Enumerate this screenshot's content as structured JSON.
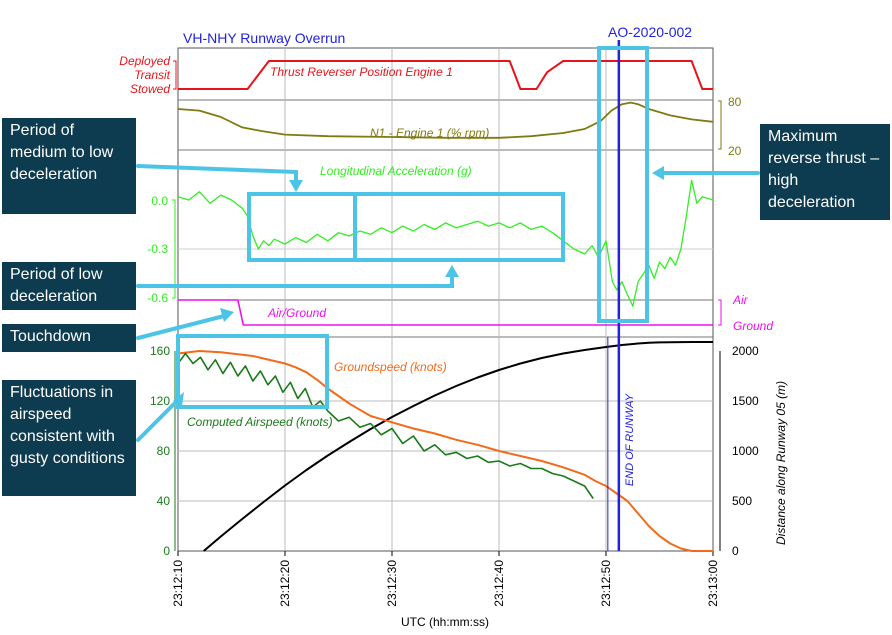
{
  "header": {
    "title": "VH-NHY Runway Overrun",
    "report_id": "AO-2020-002"
  },
  "colors": {
    "reverser": "#e8141b",
    "n1": "#807a10",
    "accel": "#33ee22",
    "airground": "#ee11ee",
    "groundspeed": "#f26b1c",
    "airspeed": "#1b7a1b",
    "distance": "#000000",
    "runway_end": "#2222dd",
    "highlight": "#4cc4e6",
    "callout_bg": "#0d3b4f"
  },
  "callouts": [
    {
      "id": "medium-low-decel",
      "text": "Period of medium to low deceleration"
    },
    {
      "id": "max-reverse",
      "text": "Maximum reverse thrust – high deceleration"
    },
    {
      "id": "low-decel",
      "text": "Period of low deceleration"
    },
    {
      "id": "touchdown",
      "text": "Touchdown"
    },
    {
      "id": "fluctuations",
      "text": "Fluctuations in airspeed consistent with gusty conditions"
    }
  ],
  "chart_data": {
    "type": "line",
    "title": "VH-NHY Runway Overrun",
    "xlabel": "UTC (hh:mm:ss)",
    "x_ticks": [
      "23:12:10",
      "23:12:20",
      "23:12:30",
      "23:12:40",
      "23:12:50",
      "23:13:00"
    ],
    "xlim": [
      0,
      50
    ],
    "grid": true,
    "marker": {
      "label": "END OF RUNWAY",
      "t": 41.2
    },
    "panels": [
      {
        "id": "reverser",
        "levels": [
          "Deployed",
          "Transit",
          "Stowed"
        ],
        "series": [
          {
            "name": "Thrust Reverser Position Engine 1",
            "t": [
              0,
              6.5,
              8.5,
              31,
              32,
              33.5,
              34.5,
              36,
              48,
              49,
              50
            ],
            "v": [
              0,
              0,
              2,
              2,
              0,
              0,
              1.2,
              2,
              2,
              0,
              0
            ]
          }
        ]
      },
      {
        "id": "n1",
        "ylim": [
          20,
          80
        ],
        "y_ticks": [
          "80",
          "20"
        ],
        "series": [
          {
            "name": "N1 - Engine 1 (% rpm)",
            "t": [
              0,
              2,
              4,
              6,
              8,
              10,
              14,
              20,
              25,
              30,
              33,
              36,
              38,
              39.5,
              40.5,
              41.5,
              42.3,
              43,
              44,
              46,
              48,
              50
            ],
            "v": [
              70,
              68,
              60,
              47,
              42,
              38,
              36,
              35,
              34,
              34,
              36,
              40,
              45,
              55,
              68,
              76,
              78,
              76,
              70,
              62,
              57,
              54
            ]
          }
        ]
      },
      {
        "id": "accel",
        "ylim": [
          -0.6,
          0.0
        ],
        "y_ticks": [
          "0.0",
          "-0.3",
          "-0.6"
        ],
        "series": [
          {
            "name": "Longitudinal Acceleration (g)",
            "t": [
              0,
              1,
              2,
              3,
              4,
              5,
              6,
              6.5,
              7,
              7.5,
              8,
              8.5,
              9,
              10,
              11,
              12,
              13,
              14,
              15,
              16,
              17,
              18,
              19,
              20,
              21,
              22,
              23,
              24,
              25,
              26,
              27,
              28,
              29,
              30,
              31,
              32,
              33,
              34,
              35,
              36,
              37,
              38,
              38.7,
              39.3,
              40,
              40.6,
              41,
              41.5,
              42,
              42.5,
              43,
              43.5,
              44,
              44.5,
              45,
              45.5,
              46,
              46.5,
              47,
              47.5,
              48,
              48.5,
              49,
              50
            ],
            "v": [
              0.02,
              0.0,
              0.05,
              -0.02,
              0.03,
              0.0,
              -0.05,
              -0.1,
              -0.22,
              -0.3,
              -0.25,
              -0.28,
              -0.24,
              -0.27,
              -0.23,
              -0.26,
              -0.21,
              -0.25,
              -0.2,
              -0.22,
              -0.19,
              -0.21,
              -0.17,
              -0.2,
              -0.16,
              -0.19,
              -0.15,
              -0.18,
              -0.14,
              -0.17,
              -0.15,
              -0.13,
              -0.16,
              -0.14,
              -0.17,
              -0.14,
              -0.18,
              -0.16,
              -0.2,
              -0.25,
              -0.3,
              -0.33,
              -0.28,
              -0.35,
              -0.25,
              -0.5,
              -0.55,
              -0.5,
              -0.58,
              -0.65,
              -0.5,
              -0.45,
              -0.4,
              -0.48,
              -0.38,
              -0.42,
              -0.35,
              -0.4,
              -0.3,
              -0.1,
              0.12,
              -0.02,
              0.02,
              0.0
            ]
          }
        ]
      },
      {
        "id": "airground",
        "levels": [
          "Air",
          "Ground"
        ],
        "series": [
          {
            "name": "Air/Ground",
            "t": [
              0,
              5.6,
              6.1,
              50
            ],
            "v": [
              1,
              1,
              0,
              0
            ]
          }
        ]
      },
      {
        "id": "speed",
        "ylim": [
          0,
          160
        ],
        "y_ticks": [
          "160",
          "120",
          "80",
          "40",
          "0"
        ],
        "y2label": "Distance along Runway 05 (m)",
        "y2lim": [
          0,
          2000
        ],
        "y2_ticks": [
          "2000",
          "1500",
          "1000",
          "500",
          "0"
        ],
        "series": [
          {
            "name": "Groundspeed (knots)",
            "axis": "left",
            "t": [
              0,
              2,
              4,
              5,
              6,
              7,
              8,
              9,
              10,
              11,
              12,
              13,
              14,
              15,
              16,
              17,
              18,
              20,
              22,
              24,
              26,
              28,
              30,
              32,
              34,
              36,
              38,
              39,
              40,
              41,
              42,
              43,
              44,
              45,
              46,
              47,
              48,
              49,
              50
            ],
            "v": [
              158,
              160,
              159,
              158,
              157,
              156,
              154,
              152,
              150,
              147,
              143,
              137,
              130,
              124,
              118,
              113,
              108,
              103,
              98,
              94,
              89,
              85,
              80,
              76,
              72,
              67,
              61,
              56,
              52,
              46,
              40,
              30,
              20,
              12,
              6,
              2,
              0,
              0,
              0
            ]
          },
          {
            "name": "Computed Airspeed (knots)",
            "axis": "left",
            "t": [
              0,
              0.7,
              1.4,
              2.1,
              2.8,
              3.5,
              4.2,
              4.9,
              5.6,
              6.3,
              7,
              7.7,
              8.4,
              9.1,
              9.8,
              10.5,
              11.2,
              11.9,
              12.6,
              13.3,
              14,
              15,
              16,
              17,
              18,
              19,
              20,
              21,
              22,
              23,
              24,
              25,
              26,
              27,
              28,
              29,
              30,
              31,
              32,
              33,
              34,
              35,
              36,
              37,
              38,
              38.8
            ],
            "v": [
              150,
              158,
              150,
              155,
              145,
              153,
              142,
              151,
              140,
              148,
              136,
              144,
              133,
              140,
              127,
              135,
              122,
              130,
              115,
              120,
              112,
              104,
              107,
              99,
              102,
              93,
              98,
              86,
              92,
              80,
              85,
              77,
              79,
              74,
              76,
              71,
              72,
              68,
              70,
              66,
              66,
              62,
              60,
              56,
              52,
              42
            ]
          },
          {
            "name": "Distance along Runway 05",
            "axis": "right",
            "t": [
              2.4,
              4,
              6,
              8,
              10,
              12,
              14,
              16,
              18,
              20,
              22,
              24,
              26,
              28,
              30,
              32,
              34,
              36,
              38,
              40,
              41.5,
              42,
              43,
              44,
              45,
              46,
              47,
              48,
              49,
              50
            ],
            "v": [
              0,
              145,
              320,
              490,
              655,
              810,
              955,
              1090,
              1220,
              1340,
              1450,
              1555,
              1650,
              1735,
              1810,
              1875,
              1930,
              1975,
              2010,
              2040,
              2060,
              2065,
              2075,
              2082,
              2086,
              2088,
              2089,
              2090,
              2090,
              2090
            ]
          }
        ]
      }
    ]
  }
}
